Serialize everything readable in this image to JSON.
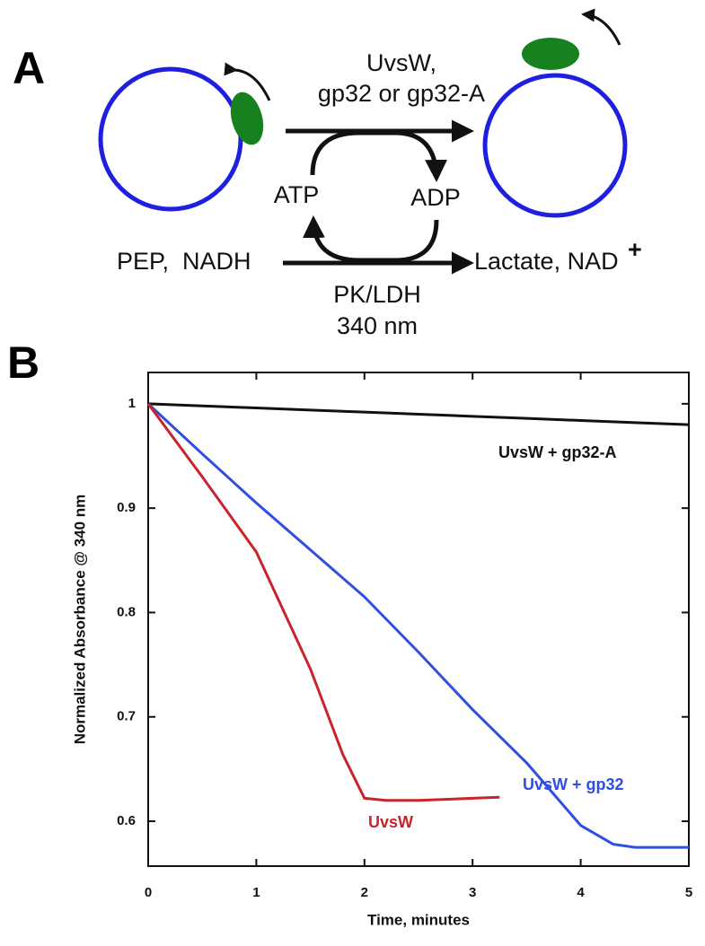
{
  "panel_a": {
    "label": "A",
    "top_reagents": [
      "UvsW,",
      "gp32 or gp32-A"
    ],
    "atp": "ATP",
    "adp": "ADP",
    "substrates": "PEP,  NADH",
    "products": "Lactate, NAD",
    "products_sup": "+",
    "enzymes": "PK/LDH",
    "wavelength": "340 nm"
  },
  "panel_b_label": "B",
  "chart_data": {
    "type": "line",
    "x_label": "Time, minutes",
    "y_label": "Normalized Absorbance @ 340 nm",
    "xlim": [
      0,
      5
    ],
    "xticks": [
      0,
      1,
      2,
      3,
      4,
      5
    ],
    "ylim": [
      0.557,
      1.03
    ],
    "yticks": [
      0.6,
      0.7,
      0.8,
      0.9,
      1
    ],
    "series": [
      {
        "name": "UvsW + gp32-A",
        "color": "#111111",
        "x": [
          0,
          0.5,
          1,
          1.5,
          2,
          2.5,
          3,
          3.5,
          4,
          4.5,
          5
        ],
        "values": [
          1,
          0.998,
          0.996,
          0.994,
          0.992,
          0.99,
          0.988,
          0.986,
          0.984,
          0.982,
          0.98
        ]
      },
      {
        "name": "UvsW + gp32",
        "color": "#2e4fe0",
        "x": [
          0,
          0.5,
          1,
          1.5,
          2,
          2.5,
          3,
          3.5,
          4,
          4.3,
          4.5,
          5
        ],
        "values": [
          1,
          0.952,
          0.905,
          0.86,
          0.815,
          0.762,
          0.707,
          0.656,
          0.596,
          0.578,
          0.575,
          0.575
        ]
      },
      {
        "name": "UvsW",
        "color": "#c8242a",
        "x": [
          0,
          0.5,
          1,
          1.5,
          1.8,
          2,
          2.2,
          2.5,
          3,
          3.25
        ],
        "values": [
          1,
          0.93,
          0.858,
          0.746,
          0.664,
          0.622,
          0.62,
          0.62,
          0.622,
          0.623
        ]
      }
    ]
  }
}
